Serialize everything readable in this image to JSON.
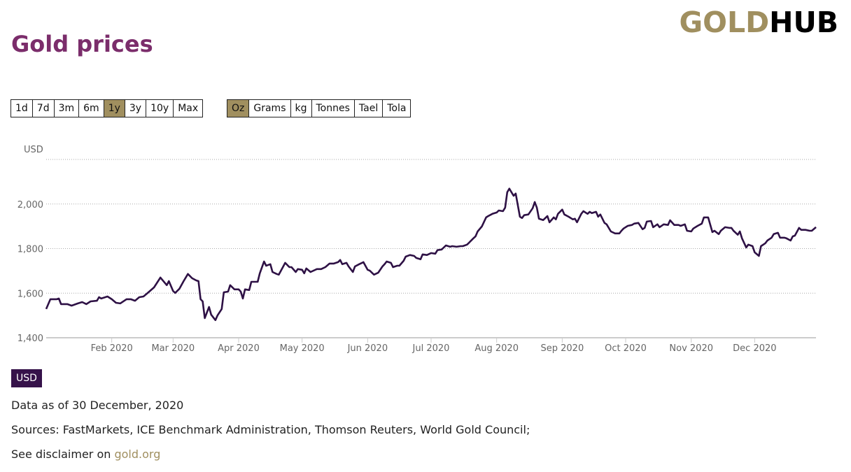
{
  "logo": {
    "part1": "GOLD",
    "part2": "HUB"
  },
  "title": "Gold prices",
  "range_buttons": [
    {
      "label": "1d",
      "active": false
    },
    {
      "label": "7d",
      "active": false
    },
    {
      "label": "3m",
      "active": false
    },
    {
      "label": "6m",
      "active": false
    },
    {
      "label": "1y",
      "active": true
    },
    {
      "label": "3y",
      "active": false
    },
    {
      "label": "10y",
      "active": false
    },
    {
      "label": "Max",
      "active": false
    }
  ],
  "unit_buttons": [
    {
      "label": "Oz",
      "active": true
    },
    {
      "label": "Grams",
      "active": false
    },
    {
      "label": "kg",
      "active": false
    },
    {
      "label": "Tonnes",
      "active": false
    },
    {
      "label": "Tael",
      "active": false
    },
    {
      "label": "Tola",
      "active": false
    }
  ],
  "currency_badge": "USD",
  "footer": {
    "data_as_of": "Data as of 30 December, 2020",
    "sources": "Sources: FastMarkets, ICE Benchmark Administration, Thomson Reuters, World Gold Council;",
    "disclaimer_prefix": "See disclaimer on ",
    "disclaimer_link": "gold.org"
  },
  "colors": {
    "line": "#2e1145",
    "accent": "#a08f5f",
    "title": "#7b2d6b",
    "badge": "#36124a"
  },
  "chart_data": {
    "type": "line",
    "title": "",
    "ylabel": "USD",
    "xlabel": "",
    "x_units": "day of year 2020",
    "xlim": [
      0,
      364
    ],
    "ylim": [
      1400,
      2200
    ],
    "yticks": [
      {
        "value": 1400,
        "label": "1,400"
      },
      {
        "value": 1600,
        "label": "1,600"
      },
      {
        "value": 1800,
        "label": "1,800"
      },
      {
        "value": 2000,
        "label": "2,000"
      },
      {
        "value": 2200,
        "label": ""
      }
    ],
    "xticks": [
      {
        "value": 31,
        "label": "Feb 2020"
      },
      {
        "value": 60,
        "label": "Mar 2020"
      },
      {
        "value": 91,
        "label": "Apr 2020"
      },
      {
        "value": 121,
        "label": "May 2020"
      },
      {
        "value": 152,
        "label": "Jun 2020"
      },
      {
        "value": 182,
        "label": "Jul 2020"
      },
      {
        "value": 213,
        "label": "Aug 2020"
      },
      {
        "value": 244,
        "label": "Sep 2020"
      },
      {
        "value": 274,
        "label": "Oct 2020"
      },
      {
        "value": 305,
        "label": "Nov 2020"
      },
      {
        "value": 335,
        "label": "Dec 2020"
      }
    ],
    "grid": true,
    "series": [
      {
        "name": "USD",
        "x": [
          0,
          2,
          5,
          6,
          7,
          10,
          12,
          15,
          17,
          19,
          21,
          24,
          25,
          26,
          29,
          31,
          33,
          35,
          38,
          40,
          42,
          44,
          46,
          48,
          51,
          54,
          57,
          58,
          60,
          61,
          63,
          65,
          67,
          69,
          71,
          72,
          73,
          74,
          75,
          77,
          78,
          80,
          81,
          83,
          84,
          86,
          87,
          89,
          91,
          92,
          93,
          94,
          96,
          97,
          100,
          101,
          103,
          104,
          106,
          107,
          109,
          110,
          113,
          115,
          116,
          118,
          119,
          121,
          122,
          123,
          125,
          128,
          130,
          132,
          134,
          136,
          138,
          139,
          140,
          142,
          143,
          145,
          146,
          148,
          150,
          152,
          153,
          155,
          157,
          159,
          160,
          161,
          163,
          164,
          166,
          167,
          169,
          170,
          172,
          174,
          175,
          177,
          178,
          180,
          182,
          184,
          185,
          187,
          189,
          191,
          192,
          194,
          196,
          197,
          199,
          200,
          202,
          203,
          204,
          206,
          208,
          209,
          211,
          213,
          214,
          216,
          217,
          218,
          219,
          221,
          222,
          224,
          225,
          226,
          228,
          230,
          231,
          232,
          233,
          235,
          237,
          238,
          240,
          241,
          242,
          244,
          245,
          247,
          249,
          250,
          251,
          253,
          254,
          256,
          257,
          258,
          260,
          261,
          262,
          264,
          265,
          267,
          269,
          271,
          272,
          273,
          275,
          277,
          278,
          280,
          282,
          283,
          284,
          286,
          287,
          289,
          290,
          292,
          294,
          295,
          297,
          299,
          300,
          302,
          303,
          305,
          306,
          308,
          310,
          311,
          313,
          315,
          316,
          318,
          319,
          321,
          323,
          324,
          325,
          327,
          328,
          329,
          331,
          332,
          334,
          335,
          337,
          338,
          340,
          341,
          343,
          344,
          346,
          347,
          349,
          350,
          352,
          353,
          354,
          356,
          357,
          359,
          361,
          362,
          364
        ],
        "values": [
          1529,
          1573,
          1573,
          1576,
          1551,
          1551,
          1544,
          1554,
          1560,
          1551,
          1563,
          1566,
          1582,
          1576,
          1585,
          1573,
          1557,
          1554,
          1573,
          1573,
          1566,
          1582,
          1585,
          1601,
          1626,
          1670,
          1636,
          1654,
          1610,
          1601,
          1620,
          1654,
          1686,
          1667,
          1657,
          1654,
          1573,
          1563,
          1488,
          1538,
          1504,
          1479,
          1500,
          1529,
          1604,
          1607,
          1636,
          1617,
          1617,
          1607,
          1576,
          1617,
          1614,
          1651,
          1651,
          1689,
          1742,
          1723,
          1730,
          1695,
          1686,
          1683,
          1736,
          1717,
          1717,
          1695,
          1708,
          1705,
          1689,
          1711,
          1695,
          1708,
          1708,
          1717,
          1733,
          1733,
          1739,
          1749,
          1730,
          1736,
          1720,
          1695,
          1720,
          1730,
          1739,
          1705,
          1701,
          1683,
          1692,
          1720,
          1730,
          1742,
          1736,
          1717,
          1723,
          1723,
          1745,
          1764,
          1771,
          1767,
          1758,
          1752,
          1774,
          1771,
          1780,
          1777,
          1793,
          1796,
          1814,
          1808,
          1811,
          1808,
          1811,
          1811,
          1818,
          1827,
          1846,
          1855,
          1877,
          1899,
          1940,
          1946,
          1956,
          1962,
          1971,
          1968,
          1984,
          2053,
          2069,
          2037,
          2047,
          1943,
          1937,
          1950,
          1953,
          1981,
          2009,
          1984,
          1934,
          1928,
          1946,
          1918,
          1940,
          1931,
          1956,
          1975,
          1953,
          1943,
          1931,
          1934,
          1918,
          1956,
          1968,
          1956,
          1965,
          1959,
          1965,
          1943,
          1953,
          1915,
          1909,
          1877,
          1868,
          1868,
          1880,
          1890,
          1902,
          1906,
          1912,
          1915,
          1887,
          1893,
          1921,
          1924,
          1896,
          1909,
          1896,
          1909,
          1906,
          1927,
          1906,
          1906,
          1902,
          1909,
          1880,
          1877,
          1890,
          1902,
          1912,
          1940,
          1940,
          1874,
          1880,
          1865,
          1880,
          1896,
          1893,
          1893,
          1880,
          1862,
          1877,
          1846,
          1805,
          1818,
          1811,
          1783,
          1767,
          1811,
          1824,
          1836,
          1849,
          1865,
          1871,
          1849,
          1849,
          1846,
          1836,
          1855,
          1858,
          1893,
          1884,
          1884,
          1880,
          1880,
          1896
        ]
      }
    ]
  }
}
